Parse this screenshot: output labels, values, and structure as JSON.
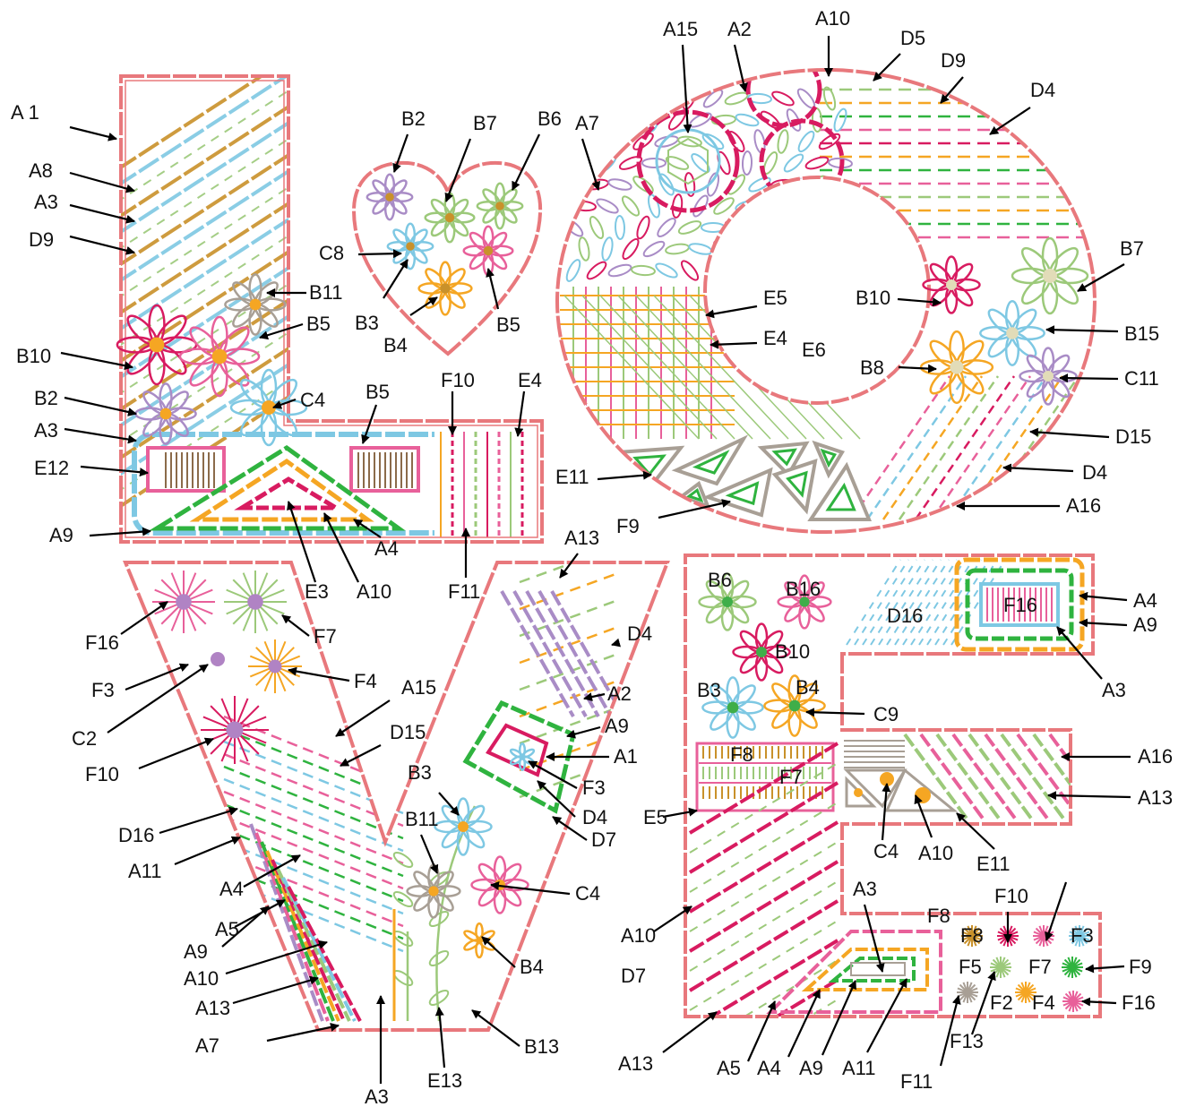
{
  "labels": [
    {
      "id": "l1",
      "text": "A 1"
    },
    {
      "id": "l2",
      "text": "A8"
    },
    {
      "id": "l3",
      "text": "A3"
    },
    {
      "id": "l4",
      "text": "D9"
    },
    {
      "id": "l5",
      "text": "B10"
    },
    {
      "id": "l6",
      "text": "B2"
    },
    {
      "id": "l7",
      "text": "A3"
    },
    {
      "id": "l8",
      "text": "E12"
    },
    {
      "id": "l9",
      "text": "A9"
    },
    {
      "id": "l10",
      "text": "B11"
    },
    {
      "id": "l11",
      "text": "B5"
    },
    {
      "id": "l12",
      "text": "C4"
    },
    {
      "id": "l13",
      "text": "B5"
    },
    {
      "id": "l14",
      "text": "F10"
    },
    {
      "id": "l15",
      "text": "E4"
    },
    {
      "id": "l16",
      "text": "E3"
    },
    {
      "id": "l17",
      "text": "A10"
    },
    {
      "id": "l18",
      "text": "A4"
    },
    {
      "id": "l19",
      "text": "F11"
    },
    {
      "id": "h1",
      "text": "B2"
    },
    {
      "id": "h2",
      "text": "B7"
    },
    {
      "id": "h3",
      "text": "B6"
    },
    {
      "id": "h4",
      "text": "C8"
    },
    {
      "id": "h5",
      "text": "B3"
    },
    {
      "id": "h6",
      "text": "B4"
    },
    {
      "id": "h7",
      "text": "B5"
    },
    {
      "id": "o1",
      "text": "A15"
    },
    {
      "id": "o2",
      "text": "A2"
    },
    {
      "id": "o3",
      "text": "A10"
    },
    {
      "id": "o4",
      "text": "D5"
    },
    {
      "id": "o5",
      "text": "D9"
    },
    {
      "id": "o6",
      "text": "D4"
    },
    {
      "id": "o7",
      "text": "A7"
    },
    {
      "id": "o8",
      "text": "E5"
    },
    {
      "id": "o9",
      "text": "E4"
    },
    {
      "id": "o10",
      "text": "E6"
    },
    {
      "id": "o11",
      "text": "B10"
    },
    {
      "id": "o12",
      "text": "B7"
    },
    {
      "id": "o13",
      "text": "B15"
    },
    {
      "id": "o14",
      "text": "B8"
    },
    {
      "id": "o15",
      "text": "C11"
    },
    {
      "id": "o16",
      "text": "D15"
    },
    {
      "id": "o17",
      "text": "D4"
    },
    {
      "id": "o18",
      "text": "A16"
    },
    {
      "id": "o19",
      "text": "E11"
    },
    {
      "id": "o20",
      "text": "F9"
    },
    {
      "id": "v1",
      "text": "F16"
    },
    {
      "id": "v2",
      "text": "F7"
    },
    {
      "id": "v3",
      "text": "F3"
    },
    {
      "id": "v4",
      "text": "F4"
    },
    {
      "id": "v5",
      "text": "C2"
    },
    {
      "id": "v6",
      "text": "A15"
    },
    {
      "id": "v7",
      "text": "F10"
    },
    {
      "id": "v8",
      "text": "D15"
    },
    {
      "id": "v9",
      "text": "D16"
    },
    {
      "id": "v10",
      "text": "A11"
    },
    {
      "id": "v11",
      "text": "A4"
    },
    {
      "id": "v12",
      "text": "A5"
    },
    {
      "id": "v13",
      "text": "A9"
    },
    {
      "id": "v14",
      "text": "A10"
    },
    {
      "id": "v15",
      "text": "A13"
    },
    {
      "id": "v16",
      "text": "A7"
    },
    {
      "id": "v17",
      "text": "A3"
    },
    {
      "id": "v18",
      "text": "E13"
    },
    {
      "id": "v19",
      "text": "B13"
    },
    {
      "id": "v20",
      "text": "B4"
    },
    {
      "id": "v21",
      "text": "C4"
    },
    {
      "id": "v22",
      "text": "B11"
    },
    {
      "id": "v23",
      "text": "B3"
    },
    {
      "id": "v24",
      "text": "D7"
    },
    {
      "id": "v25",
      "text": "D4"
    },
    {
      "id": "v26",
      "text": "F3"
    },
    {
      "id": "v27",
      "text": "A1"
    },
    {
      "id": "v28",
      "text": "A9"
    },
    {
      "id": "v29",
      "text": "A2"
    },
    {
      "id": "v30",
      "text": "D4"
    },
    {
      "id": "v31",
      "text": "A13"
    },
    {
      "id": "e1",
      "text": "B6"
    },
    {
      "id": "e2",
      "text": "B16"
    },
    {
      "id": "e3",
      "text": "D16"
    },
    {
      "id": "e4",
      "text": "F16"
    },
    {
      "id": "e5",
      "text": "A4"
    },
    {
      "id": "e6",
      "text": "A9"
    },
    {
      "id": "e7",
      "text": "A3"
    },
    {
      "id": "e8",
      "text": "B10"
    },
    {
      "id": "e9",
      "text": "B3"
    },
    {
      "id": "e10",
      "text": "B4"
    },
    {
      "id": "e11",
      "text": "C9"
    },
    {
      "id": "e12",
      "text": "F8"
    },
    {
      "id": "e13",
      "text": "F7"
    },
    {
      "id": "e14",
      "text": "A16"
    },
    {
      "id": "e15",
      "text": "A13"
    },
    {
      "id": "e16",
      "text": "E5"
    },
    {
      "id": "e17",
      "text": "C4"
    },
    {
      "id": "e18",
      "text": "A10"
    },
    {
      "id": "e19",
      "text": "E11"
    },
    {
      "id": "e20",
      "text": "A10"
    },
    {
      "id": "e21",
      "text": "D7"
    },
    {
      "id": "e22",
      "text": "A3"
    },
    {
      "id": "e23",
      "text": "F10"
    },
    {
      "id": "e24",
      "text": "F8"
    },
    {
      "id": "e25",
      "text": "F3"
    },
    {
      "id": "e26",
      "text": "F5"
    },
    {
      "id": "e27",
      "text": "F7"
    },
    {
      "id": "e28",
      "text": "F9"
    },
    {
      "id": "e29",
      "text": "F2"
    },
    {
      "id": "e30",
      "text": "F4"
    },
    {
      "id": "e31",
      "text": "F16"
    },
    {
      "id": "e32",
      "text": "F13"
    },
    {
      "id": "e33",
      "text": "A13"
    },
    {
      "id": "e34",
      "text": "A5"
    },
    {
      "id": "e35",
      "text": "A4"
    },
    {
      "id": "e36",
      "text": "A9"
    },
    {
      "id": "e37",
      "text": "A11"
    },
    {
      "id": "e38",
      "text": "F11"
    },
    {
      "id": "e39",
      "text": "F8"
    }
  ],
  "colors": {
    "outline": "#e8787c",
    "pink": "#e8609a",
    "magenta": "#d81b60",
    "blue": "#7ec8e3",
    "green": "#2fb33f",
    "lightgreen": "#9cc97a",
    "orange": "#f5a623",
    "gold": "#c9912a",
    "brown": "#8b6b4a",
    "purple": "#a98cc6",
    "grey": "#a89f95",
    "cream": "#e2dcb8",
    "center_green": "#3fae49",
    "center_purple": "#b083c4"
  }
}
